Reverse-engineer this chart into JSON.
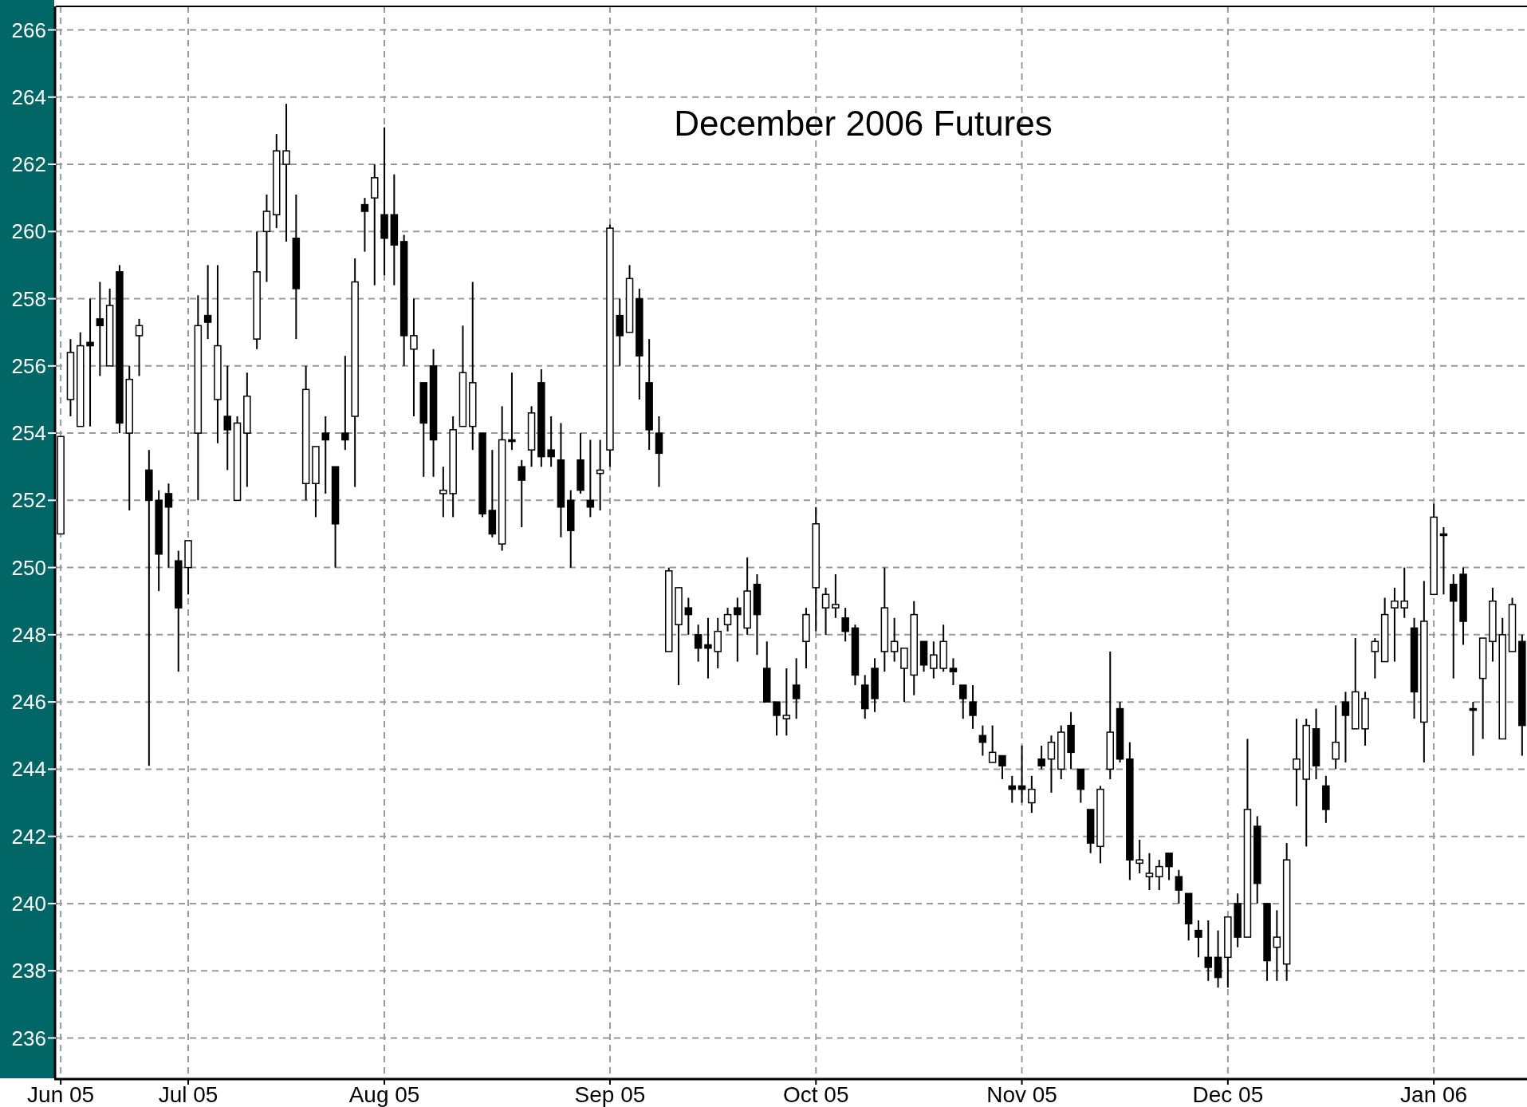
{
  "chart_data": {
    "type": "candlestick",
    "title": "December 2006 Futures",
    "color": "#000000",
    "grid": true,
    "ylim": [
      234.8,
      266.7
    ],
    "yticks": [
      236,
      238,
      240,
      242,
      244,
      246,
      248,
      250,
      252,
      254,
      256,
      258,
      260,
      262,
      264,
      266
    ],
    "categories": [
      "Jun 05",
      null,
      null,
      null,
      null,
      null,
      null,
      null,
      null,
      null,
      null,
      null,
      null,
      "Jul 05",
      null,
      null,
      null,
      null,
      null,
      null,
      null,
      null,
      null,
      null,
      null,
      null,
      null,
      null,
      null,
      null,
      null,
      null,
      null,
      "Aug 05",
      null,
      null,
      null,
      null,
      null,
      null,
      null,
      null,
      null,
      null,
      null,
      null,
      null,
      null,
      null,
      null,
      null,
      null,
      null,
      null,
      null,
      null,
      "Sep 05",
      null,
      null,
      null,
      null,
      null,
      null,
      null,
      null,
      null,
      null,
      null,
      null,
      null,
      null,
      null,
      null,
      null,
      null,
      null,
      null,
      "Oct 05",
      null,
      null,
      null,
      null,
      null,
      null,
      null,
      null,
      null,
      null,
      null,
      null,
      null,
      null,
      null,
      null,
      null,
      null,
      null,
      null,
      "Nov 05",
      null,
      null,
      null,
      null,
      null,
      null,
      null,
      null,
      null,
      null,
      null,
      null,
      null,
      null,
      null,
      null,
      null,
      null,
      null,
      null,
      "Dec 05",
      null,
      null,
      null,
      null,
      null,
      null,
      null,
      null,
      null,
      null,
      null,
      null,
      null,
      null,
      null,
      null,
      null,
      null,
      null,
      null,
      "Jan 06",
      null,
      null,
      null,
      null,
      null,
      null,
      null,
      null,
      null
    ],
    "ohlc": [
      [
        251.0,
        253.9,
        251.0,
        253.9
      ],
      [
        255.0,
        256.8,
        254.5,
        256.4
      ],
      [
        254.2,
        257.0,
        254.2,
        256.6
      ],
      [
        256.7,
        258.0,
        254.2,
        256.6
      ],
      [
        257.4,
        258.5,
        255.7,
        257.2
      ],
      [
        256.0,
        258.3,
        256.0,
        257.8
      ],
      [
        258.8,
        259.0,
        254.0,
        254.3
      ],
      [
        254.0,
        256.0,
        251.7,
        255.6
      ],
      [
        256.9,
        257.4,
        255.7,
        257.2
      ],
      [
        252.9,
        253.5,
        244.1,
        252.0
      ],
      [
        252.0,
        252.3,
        249.3,
        250.4
      ],
      [
        252.2,
        252.5,
        250.0,
        251.8
      ],
      [
        250.2,
        250.5,
        246.9,
        248.8
      ],
      [
        250.0,
        250.8,
        249.2,
        250.8
      ],
      [
        254.0,
        258.1,
        252.0,
        257.2
      ],
      [
        257.5,
        259.0,
        256.8,
        257.3
      ],
      [
        255.0,
        259.0,
        253.7,
        256.6
      ],
      [
        254.5,
        256.0,
        252.9,
        254.1
      ],
      [
        252.0,
        254.5,
        252.0,
        254.3
      ],
      [
        254.0,
        255.8,
        252.4,
        255.1
      ],
      [
        256.8,
        260.0,
        256.5,
        258.8
      ],
      [
        260.0,
        261.1,
        258.5,
        260.6
      ],
      [
        260.5,
        262.9,
        260.1,
        262.4
      ],
      [
        262.0,
        263.8,
        259.7,
        262.4
      ],
      [
        259.8,
        261.1,
        256.8,
        258.3
      ],
      [
        252.5,
        256.0,
        252.0,
        255.3
      ],
      [
        252.5,
        253.6,
        251.5,
        253.6
      ],
      [
        254.0,
        254.5,
        252.2,
        253.8
      ],
      [
        253.0,
        253.0,
        250.0,
        251.3
      ],
      [
        254.0,
        256.3,
        253.5,
        253.8
      ],
      [
        254.5,
        259.2,
        252.4,
        258.5
      ],
      [
        260.8,
        261.0,
        259.4,
        260.6
      ],
      [
        261.0,
        262.0,
        258.4,
        261.6
      ],
      [
        260.5,
        263.1,
        258.7,
        259.8
      ],
      [
        260.5,
        261.7,
        258.4,
        259.6
      ],
      [
        259.7,
        259.9,
        256.0,
        256.9
      ],
      [
        256.5,
        258.0,
        254.5,
        256.9
      ],
      [
        255.5,
        255.5,
        252.7,
        254.3
      ],
      [
        256.0,
        256.5,
        252.7,
        253.8
      ],
      [
        252.2,
        253.0,
        251.5,
        252.3
      ],
      [
        252.2,
        254.5,
        251.5,
        254.1
      ],
      [
        254.2,
        257.2,
        254.2,
        255.8
      ],
      [
        254.2,
        258.5,
        253.5,
        255.5
      ],
      [
        254.0,
        254.0,
        251.5,
        251.6
      ],
      [
        251.7,
        253.5,
        250.9,
        251.0
      ],
      [
        250.7,
        254.8,
        250.5,
        253.8
      ],
      [
        253.8,
        255.8,
        253.5,
        253.8
      ],
      [
        253.0,
        253.2,
        251.2,
        252.6
      ],
      [
        253.5,
        254.8,
        253.0,
        254.6
      ],
      [
        255.5,
        255.9,
        253.0,
        253.3
      ],
      [
        253.5,
        254.5,
        253.0,
        253.3
      ],
      [
        253.2,
        254.3,
        250.9,
        251.8
      ],
      [
        252.0,
        252.3,
        250.0,
        251.1
      ],
      [
        253.2,
        254.0,
        252.2,
        252.3
      ],
      [
        252.0,
        253.8,
        251.5,
        251.8
      ],
      [
        252.8,
        253.8,
        251.7,
        252.9
      ],
      [
        253.5,
        260.2,
        253.0,
        260.1
      ],
      [
        257.5,
        258.0,
        256.0,
        256.9
      ],
      [
        257.0,
        259.0,
        257.0,
        258.6
      ],
      [
        258.0,
        258.3,
        255.0,
        256.3
      ],
      [
        255.5,
        256.8,
        253.5,
        254.1
      ],
      [
        254.0,
        254.5,
        252.4,
        253.4
      ],
      [
        247.5,
        250.0,
        247.5,
        249.9
      ],
      [
        248.3,
        249.4,
        246.5,
        249.4
      ],
      [
        248.8,
        249.1,
        248.0,
        248.6
      ],
      [
        248.0,
        248.3,
        247.2,
        247.6
      ],
      [
        247.7,
        248.5,
        246.7,
        247.6
      ],
      [
        247.5,
        248.5,
        247.0,
        248.1
      ],
      [
        248.3,
        248.8,
        248.1,
        248.6
      ],
      [
        248.8,
        249.1,
        247.2,
        248.6
      ],
      [
        248.2,
        250.3,
        248.0,
        249.3
      ],
      [
        249.5,
        249.8,
        247.4,
        248.6
      ],
      [
        247.0,
        247.8,
        246.0,
        246.0
      ],
      [
        246.0,
        246.0,
        245.0,
        245.6
      ],
      [
        245.5,
        247.0,
        245.0,
        245.6
      ],
      [
        246.5,
        247.3,
        245.5,
        246.1
      ],
      [
        247.8,
        248.8,
        247.0,
        248.6
      ],
      [
        249.4,
        251.8,
        248.1,
        251.3
      ],
      [
        248.8,
        249.4,
        248.0,
        249.2
      ],
      [
        248.8,
        249.8,
        248.5,
        248.9
      ],
      [
        248.5,
        248.8,
        247.8,
        248.1
      ],
      [
        248.2,
        248.3,
        246.5,
        246.8
      ],
      [
        246.5,
        246.8,
        245.5,
        245.8
      ],
      [
        247.0,
        247.3,
        245.7,
        246.1
      ],
      [
        247.5,
        250.0,
        246.9,
        248.8
      ],
      [
        247.5,
        248.5,
        247.2,
        247.8
      ],
      [
        247.0,
        247.6,
        246.0,
        247.6
      ],
      [
        246.8,
        249.0,
        246.2,
        248.6
      ],
      [
        247.8,
        247.8,
        246.9,
        247.1
      ],
      [
        247.0,
        247.8,
        246.7,
        247.4
      ],
      [
        247.0,
        248.3,
        246.9,
        247.8
      ],
      [
        247.0,
        247.3,
        246.5,
        246.9
      ],
      [
        246.5,
        246.5,
        245.5,
        246.1
      ],
      [
        246.0,
        246.5,
        245.2,
        245.6
      ],
      [
        245.0,
        245.3,
        244.4,
        244.8
      ],
      [
        244.2,
        245.3,
        244.2,
        244.5
      ],
      [
        244.4,
        244.4,
        243.7,
        244.1
      ],
      [
        243.5,
        243.8,
        243.0,
        243.4
      ],
      [
        243.5,
        244.7,
        243.0,
        243.4
      ],
      [
        243.0,
        243.8,
        242.7,
        243.4
      ],
      [
        244.3,
        244.7,
        244.0,
        244.1
      ],
      [
        244.3,
        245.0,
        243.3,
        244.8
      ],
      [
        244.0,
        245.3,
        243.7,
        245.1
      ],
      [
        245.3,
        245.7,
        244.0,
        244.5
      ],
      [
        244.0,
        244.0,
        243.0,
        243.4
      ],
      [
        242.8,
        242.8,
        241.5,
        241.8
      ],
      [
        241.7,
        243.5,
        241.2,
        243.4
      ],
      [
        244.0,
        247.5,
        243.7,
        245.1
      ],
      [
        245.8,
        246.0,
        244.2,
        244.3
      ],
      [
        244.3,
        244.8,
        240.7,
        241.3
      ],
      [
        241.2,
        241.9,
        240.9,
        241.3
      ],
      [
        240.8,
        241.5,
        240.4,
        240.9
      ],
      [
        240.8,
        241.3,
        240.4,
        241.1
      ],
      [
        241.5,
        241.5,
        240.7,
        241.1
      ],
      [
        240.8,
        241.0,
        240.0,
        240.4
      ],
      [
        240.3,
        240.3,
        238.9,
        239.4
      ],
      [
        239.2,
        239.5,
        238.4,
        239.0
      ],
      [
        238.4,
        239.5,
        237.7,
        238.1
      ],
      [
        238.4,
        239.2,
        237.5,
        237.8
      ],
      [
        238.4,
        239.6,
        237.5,
        239.6
      ],
      [
        240.0,
        240.3,
        238.7,
        239.0
      ],
      [
        239.0,
        244.9,
        239.0,
        242.8
      ],
      [
        242.3,
        242.6,
        240.0,
        240.6
      ],
      [
        240.0,
        240.0,
        237.7,
        238.3
      ],
      [
        238.7,
        239.8,
        237.7,
        239.0
      ],
      [
        238.2,
        241.8,
        237.7,
        241.3
      ],
      [
        244.0,
        245.5,
        242.9,
        244.3
      ],
      [
        243.7,
        245.5,
        241.7,
        245.3
      ],
      [
        245.2,
        245.8,
        243.7,
        244.1
      ],
      [
        243.5,
        243.8,
        242.4,
        242.8
      ],
      [
        244.3,
        245.9,
        244.0,
        244.8
      ],
      [
        246.0,
        246.3,
        244.2,
        245.6
      ],
      [
        245.2,
        247.9,
        245.2,
        246.3
      ],
      [
        245.2,
        246.3,
        244.7,
        246.1
      ],
      [
        247.5,
        247.9,
        246.7,
        247.8
      ],
      [
        247.2,
        249.1,
        247.2,
        248.6
      ],
      [
        248.8,
        249.4,
        247.2,
        249.0
      ],
      [
        248.8,
        250.0,
        248.5,
        249.0
      ],
      [
        248.2,
        248.5,
        245.5,
        246.3
      ],
      [
        245.4,
        249.6,
        244.2,
        248.4
      ],
      [
        249.2,
        251.9,
        249.2,
        251.5
      ],
      [
        251.0,
        251.2,
        249.2,
        251.0
      ],
      [
        249.5,
        249.8,
        246.7,
        249.0
      ],
      [
        249.8,
        250.0,
        247.7,
        248.4
      ],
      [
        245.8,
        246.0,
        244.4,
        245.8
      ],
      [
        246.7,
        247.9,
        244.9,
        247.9
      ],
      [
        247.8,
        249.4,
        247.2,
        249.0
      ],
      [
        244.9,
        248.5,
        244.9,
        248.0
      ],
      [
        247.5,
        249.1,
        247.5,
        248.9
      ],
      [
        247.8,
        248.0,
        244.4,
        245.3
      ]
    ]
  }
}
